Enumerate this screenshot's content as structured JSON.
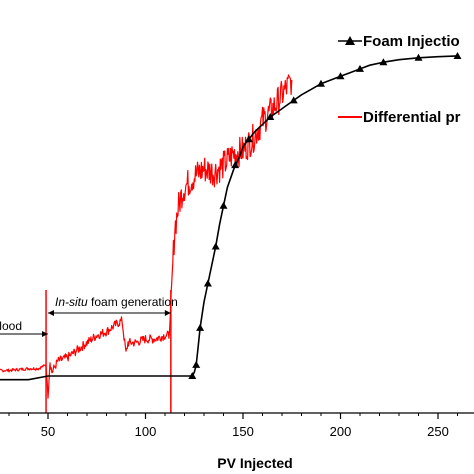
{
  "chart_data": {
    "type": "line",
    "xlabel": "PV Injected",
    "xlim": [
      0,
      262
    ],
    "ylim": [
      0,
      1
    ],
    "x_ticks": [
      50,
      100,
      150,
      200,
      250
    ],
    "x_tick_labels": [
      "50",
      "100",
      "150",
      "200",
      "250"
    ],
    "grid": false,
    "legend_position": "top-right",
    "series": [
      {
        "name": "Foam Injectio",
        "color": "#000000",
        "marker": "triangle",
        "x": [
          0,
          10,
          20,
          30,
          40,
          50,
          60,
          70,
          80,
          90,
          100,
          105,
          110,
          115,
          120,
          121,
          122,
          123,
          124,
          125,
          126,
          127,
          128,
          130,
          132,
          134,
          136,
          138,
          140,
          142,
          144,
          146,
          148,
          150,
          153,
          156,
          160,
          164,
          168,
          172,
          176,
          180,
          185,
          190,
          195,
          200,
          205,
          210,
          215,
          222,
          230,
          240,
          250,
          260
        ],
        "y": [
          0.09,
          0.09,
          0.09,
          0.09,
          0.09,
          0.1,
          0.1,
          0.1,
          0.1,
          0.1,
          0.1,
          0.1,
          0.1,
          0.1,
          0.1,
          0.1,
          0.1,
          0.1,
          0.1,
          0.11,
          0.13,
          0.18,
          0.23,
          0.3,
          0.35,
          0.4,
          0.45,
          0.51,
          0.56,
          0.61,
          0.64,
          0.67,
          0.69,
          0.72,
          0.74,
          0.76,
          0.78,
          0.8,
          0.815,
          0.83,
          0.845,
          0.86,
          0.875,
          0.89,
          0.9,
          0.91,
          0.92,
          0.93,
          0.94,
          0.948,
          0.955,
          0.96,
          0.963,
          0.965
        ]
      },
      {
        "name": "Differential pr",
        "color": "#ff0000",
        "x": [
          0,
          10,
          20,
          30,
          40,
          45,
          49,
          50,
          51,
          52,
          55,
          60,
          65,
          70,
          75,
          80,
          85,
          88,
          90,
          91,
          95,
          100,
          105,
          110,
          112,
          113,
          114,
          115,
          116,
          117,
          118,
          119,
          120,
          125,
          130,
          135,
          140,
          145,
          150,
          155,
          160,
          165,
          170,
          175
        ],
        "y": [
          0.11,
          0.11,
          0.115,
          0.115,
          0.12,
          0.12,
          0.13,
          0.05,
          0.14,
          0.11,
          0.14,
          0.15,
          0.17,
          0.19,
          0.21,
          0.22,
          0.24,
          0.25,
          0.16,
          0.19,
          0.19,
          0.2,
          0.2,
          0.21,
          0.21,
          0.27,
          0.4,
          0.5,
          0.53,
          0.56,
          0.58,
          0.6,
          0.61,
          0.64,
          0.66,
          0.65,
          0.67,
          0.7,
          0.71,
          0.74,
          0.79,
          0.82,
          0.86,
          0.9
        ]
      }
    ],
    "annotations": [
      {
        "text": "flood",
        "x_start": 0,
        "x_end": 50
      },
      {
        "text_italic": "In-situ",
        "text_rest": " foam generation",
        "x_start": 50,
        "x_end": 113
      }
    ],
    "vertical_lines": [
      49,
      113
    ]
  }
}
